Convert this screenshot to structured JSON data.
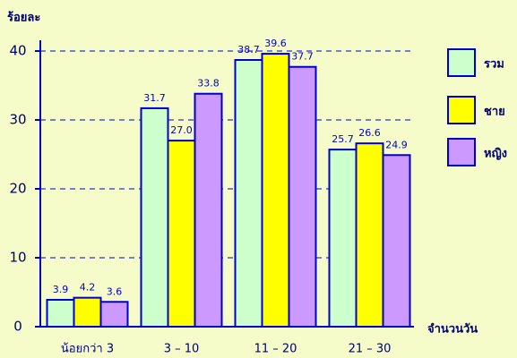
{
  "chart_data": {
    "type": "bar",
    "y_label": "ร้อยละ",
    "x_label": "จำนวนวัน",
    "categories": [
      "น้อยกว่า 3",
      "3 – 10",
      "11 – 20",
      "21 – 30"
    ],
    "series": [
      {
        "name": "รวม",
        "color": "#ccffcc",
        "values": [
          3.9,
          31.7,
          38.7,
          25.7
        ],
        "value_labels": [
          "3.9",
          "31.7",
          "38.7",
          "25.7"
        ]
      },
      {
        "name": "ชาย",
        "color": "#ffff00",
        "values": [
          4.2,
          27.0,
          39.6,
          26.6
        ],
        "value_labels": [
          "4.2",
          "27.0",
          "39.6",
          "26.6"
        ]
      },
      {
        "name": "หญิง",
        "color": "#cc99ff",
        "values": [
          3.6,
          33.8,
          37.7,
          24.9
        ],
        "value_labels": [
          "3.6",
          "33.8",
          "37.7",
          "24.9"
        ]
      }
    ],
    "ylim": [
      0,
      40
    ],
    "yticks": [
      0,
      10,
      20,
      30,
      40
    ],
    "grid": true,
    "legend": "right"
  }
}
